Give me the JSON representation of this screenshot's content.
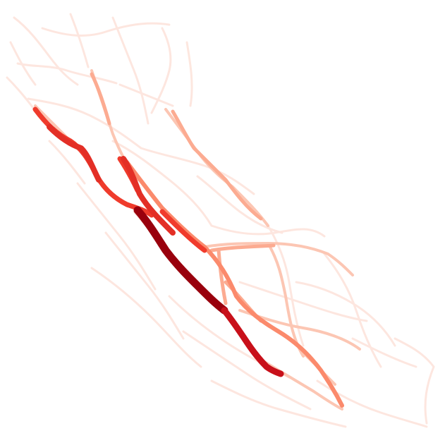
{
  "map": {
    "type": "road-network-heatmap",
    "region_shape": "California",
    "color_scale": [
      "#fee5d9",
      "#fcbba1",
      "#fc9272",
      "#fb6a4a",
      "#ef3b2c",
      "#cb181d",
      "#99000d"
    ],
    "background": "#ffffff",
    "legend": null,
    "labels": []
  }
}
